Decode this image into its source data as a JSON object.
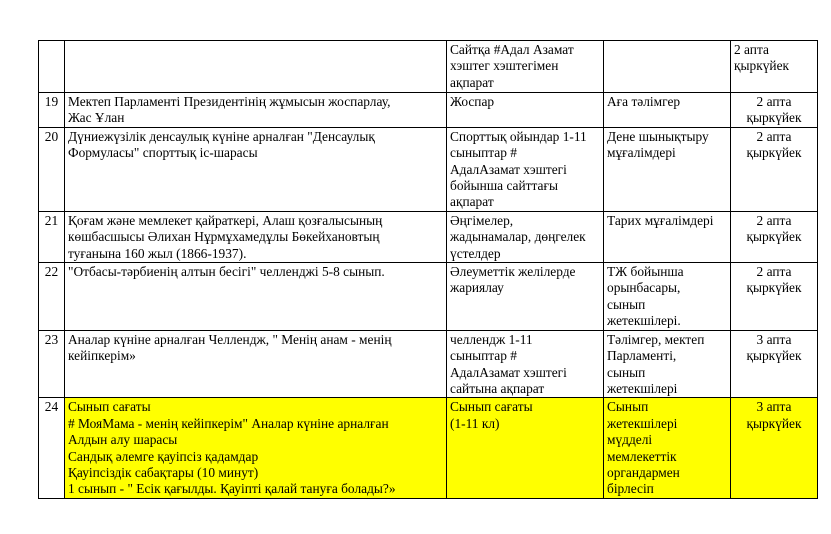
{
  "highlight_color": "#ffff00",
  "rows": [
    {
      "num": "",
      "event": "",
      "form": "Сайтқа #Адал Азамат\nхэштег хэштегімен\nақпарат",
      "responsible": "",
      "date": "2 апта\nқыркүйек"
    },
    {
      "num": "19",
      "event": "Мектеп Парламенті Президентінің жұмысын жоспарлау,\nЖас Ұлан",
      "form": "Жоспар",
      "responsible": "Аға тәлімгер",
      "date": "2 апта\nқыркүйек"
    },
    {
      "num": "20",
      "event": "Дүниежүзілік денсаулық күніне арналған \"Денсаулық\nФормуласы\" спорттық іс-шарасы",
      "form": "Спорттық ойындар 1-11\nсыныптар #\nАдалАзамат хэштегі\nбойынша сайттағы\nақпарат",
      "responsible": "Дене шынықтыру\nмұғалімдері",
      "date": "2 апта\nқыркүйек"
    },
    {
      "num": "21",
      "event": "Қоғам және мемлекет қайраткері, Алаш қозғалысының\nкөшбасшысы Әлихан Нұрмұхамедұлы Бөкейхановтың\nтуғанына 160 жыл (1866-1937).",
      "form": "Әңгімелер,\nжадынамалар, дөңгелек\nүстелдер",
      "responsible": "Тарих мұғалімдері",
      "date": "2 апта\nқыркүйек"
    },
    {
      "num": "22",
      "event": "\"Отбасы-тәрбиенің алтын бесігі\" челленджі 5-8 сынып.",
      "form": "Әлеуметтік желілерде\nжариялау",
      "responsible": "ТЖ бойынша\nорынбасары,\nсынып\nжетекшілері.",
      "date": "2 апта\nқыркүйек"
    },
    {
      "num": "23",
      "event": "Аналар күніне арналған Челлендж, \" Менің анам - менің\nкейіпкерім»",
      "form": "челлендж 1-11\nсыныптар #\nАдалАзамат хэштегі\nсайтына ақпарат",
      "responsible": "Тәлімгер, мектеп\nПарламенті,\nсынып\nжетекшілері",
      "date": "3 апта\nқыркүйек"
    },
    {
      "num": "24",
      "event": "Сынып сағаты\n# МояМама - менің кейіпкерім\" Аналар күніне арналған\nАлдын алу шарасы\nСандық әлемге қауіпсіз қадамдар\nҚауіпсіздік сабақтары (10 минут)\n1 сынып - \" Есік қағылды. Қауіпті қалай тануға болады?»",
      "form": "Сынып сағаты\n(1-11 кл)",
      "responsible": "Сынып\nжетекшілері\nмүдделі\nмемлекеттік\nоргандармен\nбірлесіп",
      "date": "3 апта\nқыркүйек",
      "highlighted": true
    }
  ]
}
